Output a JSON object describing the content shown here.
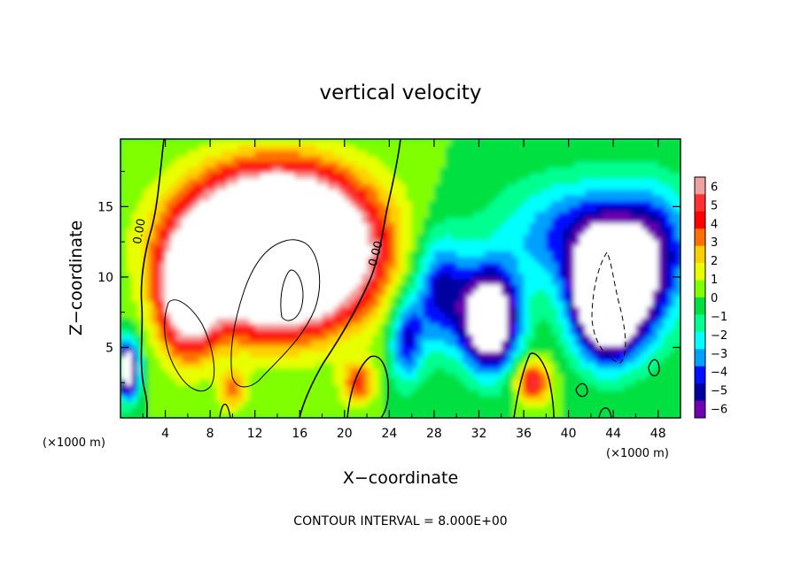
{
  "chart_data": {
    "type": "heatmap",
    "title": "vertical velocity",
    "xlabel": "X−coordinate",
    "ylabel": "Z−coordinate",
    "x_unit": "(×1000 m)",
    "x_unit_right": "(×1000 m)",
    "xlim": [
      0,
      50
    ],
    "ylim": [
      0,
      19.8
    ],
    "xticks": [
      4,
      8,
      12,
      16,
      20,
      24,
      28,
      32,
      36,
      40,
      44,
      48
    ],
    "yticks": [
      5,
      10,
      15
    ],
    "colorbar": {
      "ticks": [
        "6",
        "5",
        "4",
        "3",
        "2",
        "1",
        "0",
        "−1",
        "−2",
        "−3",
        "−4",
        "−5",
        "−6"
      ],
      "range": [
        -6,
        6
      ],
      "colors": [
        "#f0a0a0",
        "#ff3030",
        "#ff0000",
        "#ff7000",
        "#ffd000",
        "#e8ff00",
        "#80ff00",
        "#00e040",
        "#00ff90",
        "#00ffff",
        "#00a0ff",
        "#0010ff",
        "#0000a0",
        "#7000b0"
      ]
    },
    "contour_labels": [
      {
        "text": "0.00",
        "x": 2.0,
        "y": 13.2,
        "angle": -80
      },
      {
        "text": "0.00",
        "x": 23.1,
        "y": 11.6,
        "angle": -75
      }
    ],
    "footer": "CONTOUR INTERVAL = 8.000E+00",
    "features": [
      {
        "x": 14.0,
        "y": 12.0,
        "sx": 7.5,
        "sy": 4.8,
        "w": 22
      },
      {
        "x": 6.0,
        "y": 8.5,
        "sx": 2.5,
        "sy": 4.0,
        "w": 8
      },
      {
        "x": 10.0,
        "y": 2.0,
        "sx": 1.2,
        "sy": 1.5,
        "w": 3
      },
      {
        "x": 21.2,
        "y": 2.5,
        "sx": 1.5,
        "sy": 1.5,
        "w": 4
      },
      {
        "x": 36.8,
        "y": 2.6,
        "sx": 1.5,
        "sy": 1.5,
        "w": 5.5
      },
      {
        "x": 43.5,
        "y": 8.5,
        "sx": 3.0,
        "sy": 4.0,
        "w": -13
      },
      {
        "x": 42.0,
        "y": 13.0,
        "sx": 8.0,
        "sy": 4.0,
        "w": -4.5
      },
      {
        "x": 33.0,
        "y": 7.0,
        "sx": 2.5,
        "sy": 3.5,
        "w": -10
      },
      {
        "x": 28.5,
        "y": 9.0,
        "sx": 2.5,
        "sy": 4.0,
        "w": -5
      },
      {
        "x": 25.5,
        "y": 5.5,
        "sx": 1.5,
        "sy": 3.0,
        "w": -4.5
      },
      {
        "x": 47.5,
        "y": 10.5,
        "sx": 3.0,
        "sy": 5.0,
        "w": -4
      },
      {
        "x": 0.6,
        "y": 3.5,
        "sx": 1.0,
        "sy": 2.0,
        "w": -9
      }
    ]
  }
}
